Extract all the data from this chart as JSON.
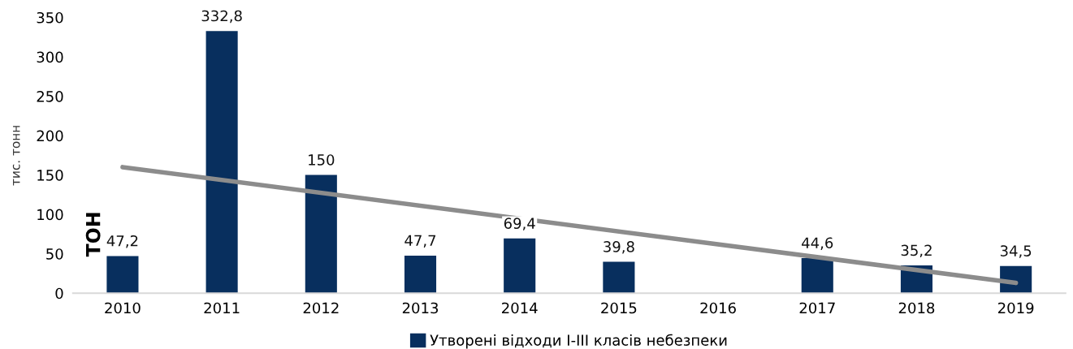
{
  "chart_data": {
    "type": "bar",
    "ylabel": "тис. тонн",
    "categories": [
      "2010",
      "2011",
      "2012",
      "2013",
      "2014",
      "2015",
      "2016",
      "2017",
      "2018",
      "2019"
    ],
    "series": [
      {
        "name": "Утворені відходи I-III класів небезпеки",
        "color": "#082f5e",
        "values": [
          47.2,
          332.8,
          150,
          47.7,
          69.4,
          39.8,
          null,
          44.6,
          35.2,
          34.5
        ],
        "value_labels": [
          "47,2",
          "332,8",
          "150",
          "47,7",
          "69,4",
          "39,8",
          null,
          "44,6",
          "35,2",
          "34,5"
        ]
      },
      {
        "type": "line",
        "color": "#8c8c8c",
        "values": [
          160,
          null,
          null,
          null,
          null,
          null,
          null,
          null,
          null,
          13
        ]
      }
    ],
    "annotations": [
      "ТОН"
    ],
    "ylim": [
      0,
      350
    ],
    "yticks": [
      0,
      50,
      100,
      150,
      200,
      250,
      300,
      350
    ],
    "grid": false,
    "legend": "bottom"
  }
}
